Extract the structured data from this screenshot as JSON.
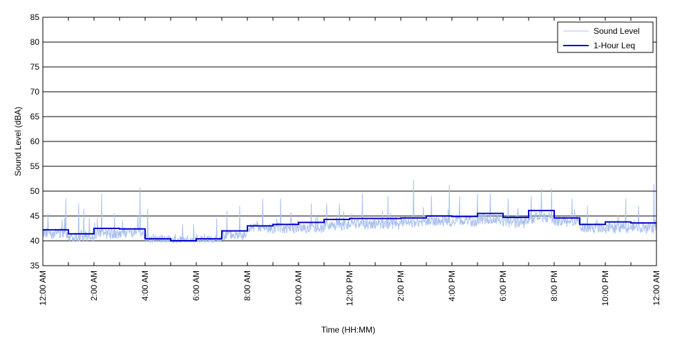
{
  "chart_data": {
    "type": "line",
    "title": "",
    "xlabel": "Time (HH:MM)",
    "ylabel": "Sound Level (dBA)",
    "ylim": [
      35,
      85
    ],
    "yticks": [
      35,
      40,
      45,
      50,
      55,
      60,
      65,
      70,
      75,
      80,
      85
    ],
    "xlim_hours": [
      0,
      24
    ],
    "xtick_hours": [
      0,
      2,
      4,
      6,
      8,
      10,
      12,
      14,
      16,
      18,
      20,
      22,
      24
    ],
    "xtick_labels": [
      "12:00 AM",
      "2:00 AM",
      "4:00 AM",
      "6:00 AM",
      "8:00 AM",
      "10:00 AM",
      "12:00 PM",
      "2:00 PM",
      "4:00 PM",
      "6:00 PM",
      "8:00 PM",
      "10:00 PM",
      "12:00 AM"
    ],
    "grid": "horizontal",
    "legend_position": "top-right",
    "series": [
      {
        "name": "Sound Level",
        "color": "#a9c1f0",
        "style": "thin-line",
        "hour_base_levels": [
          41.5,
          40.8,
          41.3,
          41.5,
          40.1,
          39.8,
          40.0,
          41.0,
          42.3,
          42.5,
          42.5,
          43.0,
          43.2,
          43.2,
          43.5,
          43.8,
          43.8,
          44.2,
          43.5,
          44.5,
          43.8,
          42.5,
          42.5,
          42.4
        ],
        "peaks": [
          [
            0.2,
            45.5
          ],
          [
            0.9,
            48.5
          ],
          [
            1.4,
            47.5
          ],
          [
            1.6,
            46.5
          ],
          [
            2.3,
            49.5
          ],
          [
            2.8,
            45.5
          ],
          [
            3.8,
            50.8
          ],
          [
            4.1,
            46.5
          ],
          [
            5.9,
            43.3
          ],
          [
            6.8,
            44.5
          ],
          [
            7.2,
            46.0
          ],
          [
            7.7,
            47.0
          ],
          [
            8.6,
            48.5
          ],
          [
            9.3,
            48.5
          ],
          [
            10.5,
            47.5
          ],
          [
            11.1,
            47.5
          ],
          [
            11.6,
            47.5
          ],
          [
            12.5,
            49.5
          ],
          [
            13.5,
            49.0
          ],
          [
            14.5,
            52.2
          ],
          [
            15.2,
            49.0
          ],
          [
            15.9,
            51.3
          ],
          [
            16.3,
            49.0
          ],
          [
            17.0,
            49.5
          ],
          [
            17.5,
            49.5
          ],
          [
            18.2,
            48.5
          ],
          [
            19.1,
            49.0
          ],
          [
            19.5,
            50.5
          ],
          [
            19.9,
            50.5
          ],
          [
            20.7,
            48.5
          ],
          [
            21.3,
            47.0
          ],
          [
            22.8,
            48.5
          ],
          [
            23.3,
            47.0
          ],
          [
            23.9,
            51.5
          ]
        ]
      },
      {
        "name": "1-Hour Leq",
        "color": "#0000cc",
        "style": "step",
        "values": [
          42.2,
          41.4,
          42.5,
          42.4,
          40.4,
          40.0,
          40.4,
          42.0,
          43.0,
          43.3,
          43.7,
          44.3,
          44.5,
          44.5,
          44.6,
          45.0,
          44.9,
          45.5,
          44.7,
          46.1,
          44.6,
          43.3,
          43.8,
          43.6
        ]
      }
    ]
  }
}
